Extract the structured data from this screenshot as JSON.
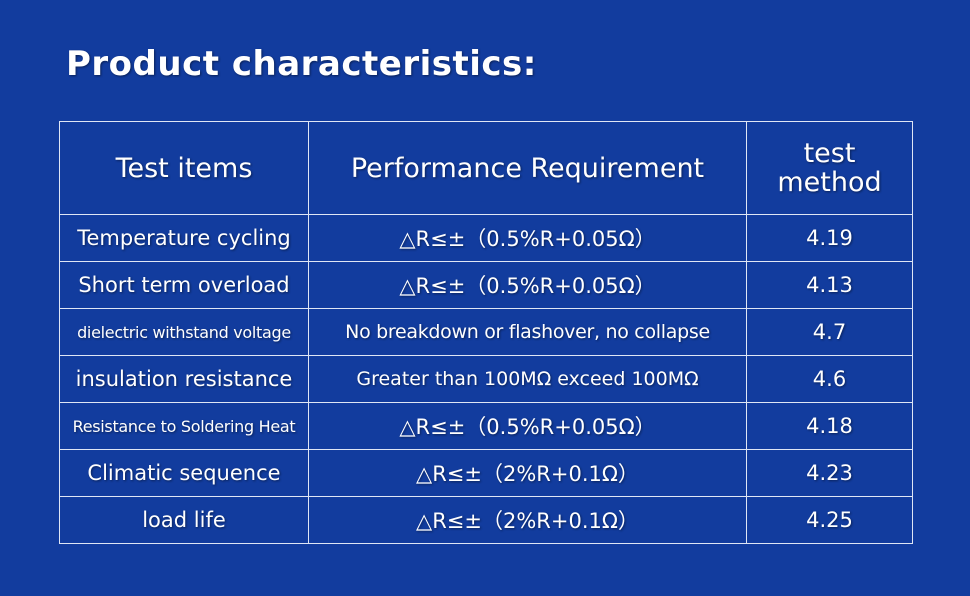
{
  "title": "Product characteristics:",
  "table": {
    "headers": {
      "test_items": "Test items",
      "performance": "Performance Requirement",
      "method_line1": "test",
      "method_line2": "method"
    },
    "rows": [
      {
        "item": "Temperature cycling",
        "requirement": "△R≤±（0.5%R+0.05Ω）",
        "method": "4.19"
      },
      {
        "item": "Short term overload",
        "requirement": "△R≤±（0.5%R+0.05Ω）",
        "method": "4.13"
      },
      {
        "item": "dielectric withstand voltage",
        "requirement": "No breakdown or flashover, no collapse",
        "method": "4.7"
      },
      {
        "item": "insulation resistance",
        "requirement": "Greater than 100MΩ exceed 100MΩ",
        "method": "4.6"
      },
      {
        "item": "Resistance to Soldering Heat",
        "requirement": "△R≤±（0.5%R+0.05Ω）",
        "method": "4.18"
      },
      {
        "item": "Climatic sequence",
        "requirement": "△R≤±（2%R+0.1Ω）",
        "method": "4.23"
      },
      {
        "item": "load life",
        "requirement": "△R≤±（2%R+0.1Ω）",
        "method": "4.25"
      }
    ]
  },
  "colors": {
    "background": "#123c9e",
    "text": "#ffffff",
    "border": "#dfe6f5"
  }
}
